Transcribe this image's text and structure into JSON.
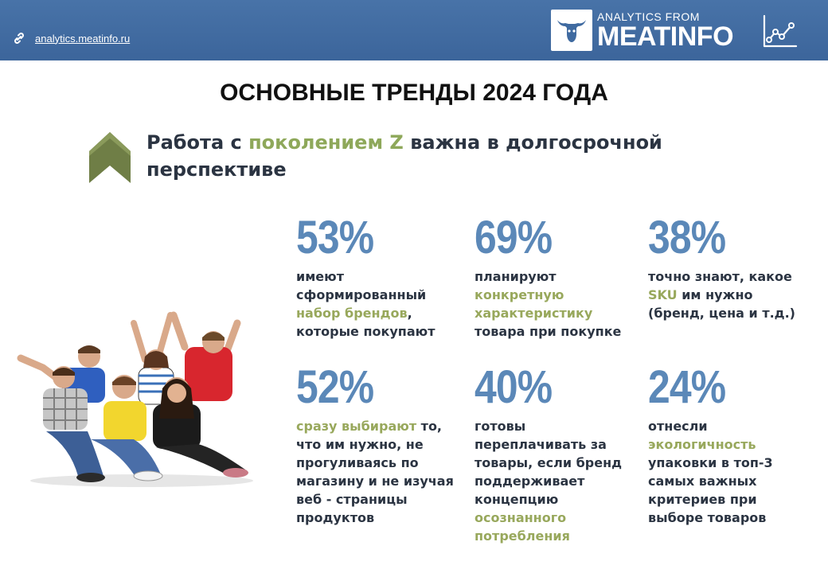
{
  "header": {
    "site_link": "analytics.meatinfo.ru",
    "logo_small": "ANALYTICS FROM",
    "logo_big": "MEATINFO",
    "bg_color": "#3f6aa0"
  },
  "title": "ОСНОВНЫЕ ТРЕНДЫ 2024 ГОДА",
  "subtitle": {
    "part1": "Работа с ",
    "accent": "поколением Z",
    "part2": " важна в долгосрочной перспективе",
    "accent_color": "#8ea85a"
  },
  "stats": [
    {
      "value": "53%",
      "pre": "имеют сформированный ",
      "accent": "набор брендов",
      "post": ", которые покупают"
    },
    {
      "value": "69%",
      "pre": "планируют ",
      "accent": "конкретную характеристику",
      "post": " товара при покупке"
    },
    {
      "value": "38%",
      "pre": "точно знают, какое ",
      "accent": "SKU",
      "post": " им нужно (бренд, цена и т.д.)"
    },
    {
      "value": "52%",
      "pre": "",
      "accent": "сразу выбирают",
      "post": " то, что им нужно, не прогуливаясь по магазину и не изучая веб - страницы продуктов"
    },
    {
      "value": "40%",
      "pre": "готовы переплачивать за товары, если бренд поддерживает концепцию ",
      "accent": "осознанного потребления",
      "post": ""
    },
    {
      "value": "24%",
      "pre": "отнесли ",
      "accent": "экологичность",
      "post": " упаковки в топ-3 самых важных критериев при выборе товаров"
    }
  ],
  "icons": {
    "link": "link-icon",
    "logo": "bull-head-icon",
    "chart": "line-chart-icon",
    "arrow": "chevron-up-icon"
  }
}
